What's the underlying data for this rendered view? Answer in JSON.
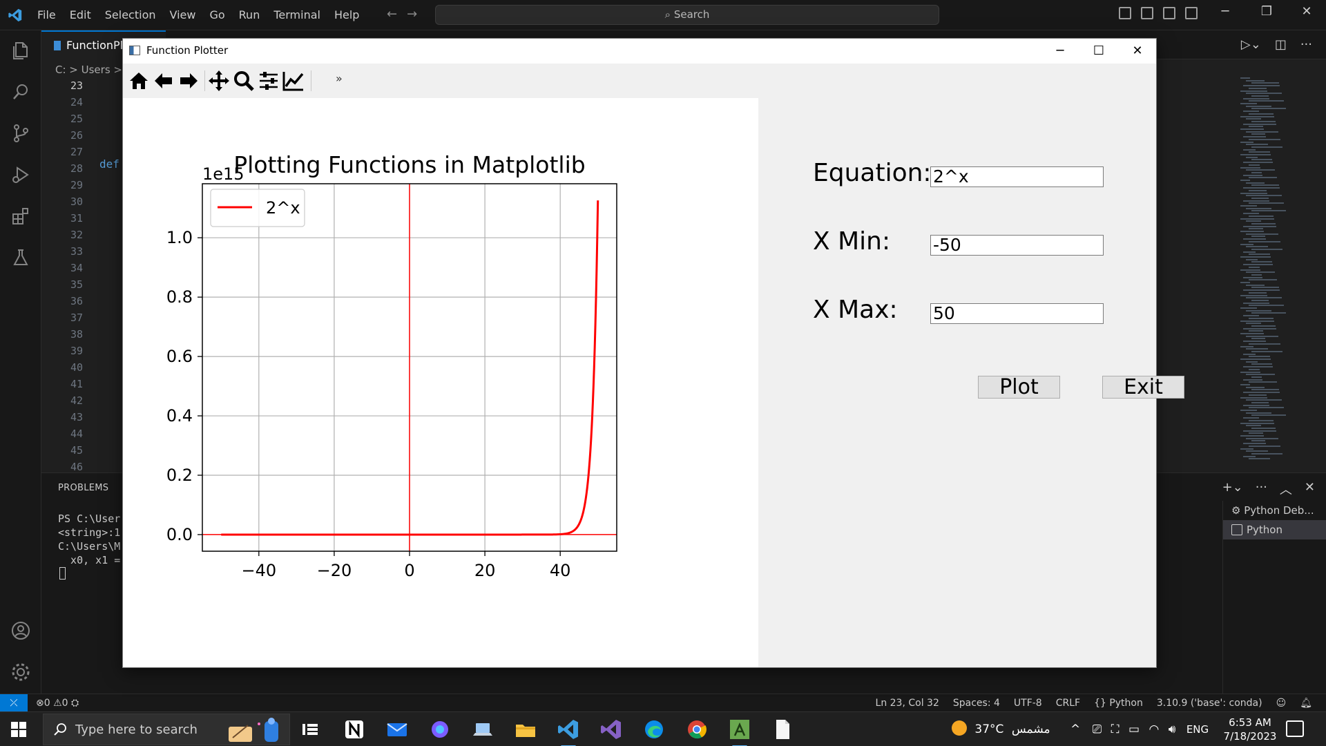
{
  "vscode": {
    "menu": [
      "File",
      "Edit",
      "Selection",
      "View",
      "Go",
      "Run",
      "Terminal",
      "Help"
    ],
    "command_center": "Search",
    "tab_label": "FunctionPl",
    "breadcrumb": "C: > Users >",
    "line_numbers": [
      "23",
      "24",
      "25",
      "26",
      "27",
      "28",
      "29",
      "30",
      "31",
      "32",
      "33",
      "34",
      "35",
      "36",
      "37",
      "38",
      "39",
      "40",
      "41",
      "42",
      "43",
      "44",
      "45",
      "46"
    ],
    "code_keyword": "def",
    "panel_tab": "PROBLEMS",
    "terminal_lines": [
      "PS C:\\User",
      "<string>:1",
      "C:\\Users\\M",
      "  x0, x1 ="
    ],
    "terminal_list": [
      "Python Deb...",
      "Python"
    ],
    "status": {
      "errors": "0",
      "warnings": "0",
      "position": "Ln 23, Col 32",
      "spaces": "Spaces: 4",
      "encoding": "UTF-8",
      "eol": "CRLF",
      "language": "Python",
      "interpreter": "3.10.9 ('base': conda)"
    },
    "accent_color": "#0078d4"
  },
  "plotter": {
    "window_title": "Function Plotter",
    "toolbar": [
      "home-icon",
      "back-arrow-icon",
      "forward-arrow-icon",
      "pan-icon",
      "zoom-icon",
      "subplots-config-icon",
      "edit-axis-icon"
    ],
    "toolbar_more": "»",
    "form": {
      "equation_label": "Equation:",
      "equation_value": "2^x",
      "xmin_label": "X Min:",
      "xmin_value": "-50",
      "xmax_label": "X Max:",
      "xmax_value": "50",
      "plot_button": "Plot",
      "exit_button": "Exit"
    }
  },
  "chart_data": {
    "type": "line",
    "title": "Plotting Functions in Matplotlib",
    "offset_text": "1e15",
    "xlabel": "",
    "ylabel": "",
    "xlim": [
      -55,
      55
    ],
    "ylim": [
      -0.056,
      1.182
    ],
    "xticks": [
      -40,
      -20,
      0,
      20,
      40
    ],
    "xtick_labels": [
      "−40",
      "−20",
      "0",
      "20",
      "40"
    ],
    "yticks": [
      0.0,
      0.2,
      0.4,
      0.6,
      0.8,
      1.0
    ],
    "ytick_labels": [
      "0.0",
      "0.2",
      "0.4",
      "0.6",
      "0.8",
      "1.0"
    ],
    "grid": true,
    "legend_position": "upper left",
    "series": [
      {
        "name": "2^x",
        "color": "#ff0000",
        "function": "2^x",
        "x_range": [
          -50,
          50
        ],
        "y_scale": 1000000000000000.0
      }
    ],
    "reference_lines": {
      "x": 0,
      "y": 0,
      "color": "#ff0000"
    }
  },
  "taskbar": {
    "search_placeholder": "Type here to search",
    "weather_temp": "37°C",
    "weather_text": "مشمس",
    "language": "ENG",
    "time": "6:53 AM",
    "date": "7/18/2023",
    "apps": [
      "task-view-icon",
      "notion-icon",
      "mail-icon",
      "copilot-icon",
      "laptop-icon",
      "file-explorer-icon",
      "vscode-icon",
      "visual-studio-icon",
      "edge-icon",
      "chrome-icon",
      "python-app-icon",
      "blank-file-icon"
    ]
  }
}
